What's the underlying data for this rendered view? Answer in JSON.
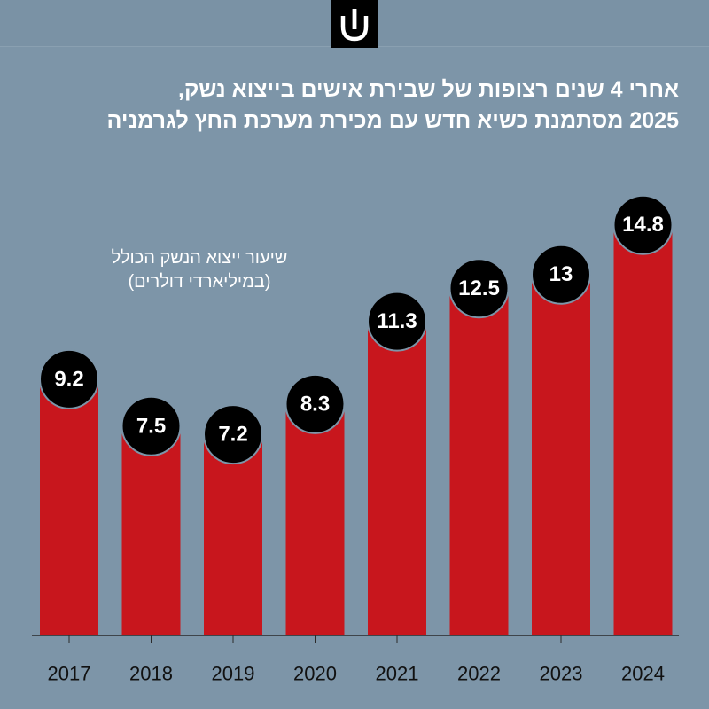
{
  "title_lines": [
    "אחרי 4 שנים רצופות של שבירת אישים בייצוא נשק,",
    "2025 מסתמנת כשיא חדש עם מכירת מערכת החץ לגרמניה"
  ],
  "subtitle_lines": [
    "שיעור ייצוא הנשק הכולל",
    "(במיליארדי דולרים)"
  ],
  "colors": {
    "background": "#7d95a8",
    "bar": "#c8161d",
    "bubble": "#000000",
    "text": "#ffffff",
    "axis_text": "#111111"
  },
  "chart_data": {
    "type": "bar",
    "categories": [
      "2017",
      "2018",
      "2019",
      "2020",
      "2021",
      "2022",
      "2023",
      "2024"
    ],
    "values": [
      9.2,
      7.5,
      7.2,
      8.3,
      11.3,
      12.5,
      13,
      14.8
    ],
    "value_labels": [
      "9.2",
      "7.5",
      "7.2",
      "8.3",
      "11.3",
      "12.5",
      "13",
      "14.8"
    ],
    "ylim": [
      0,
      16
    ],
    "grid": false,
    "legend": "none"
  }
}
